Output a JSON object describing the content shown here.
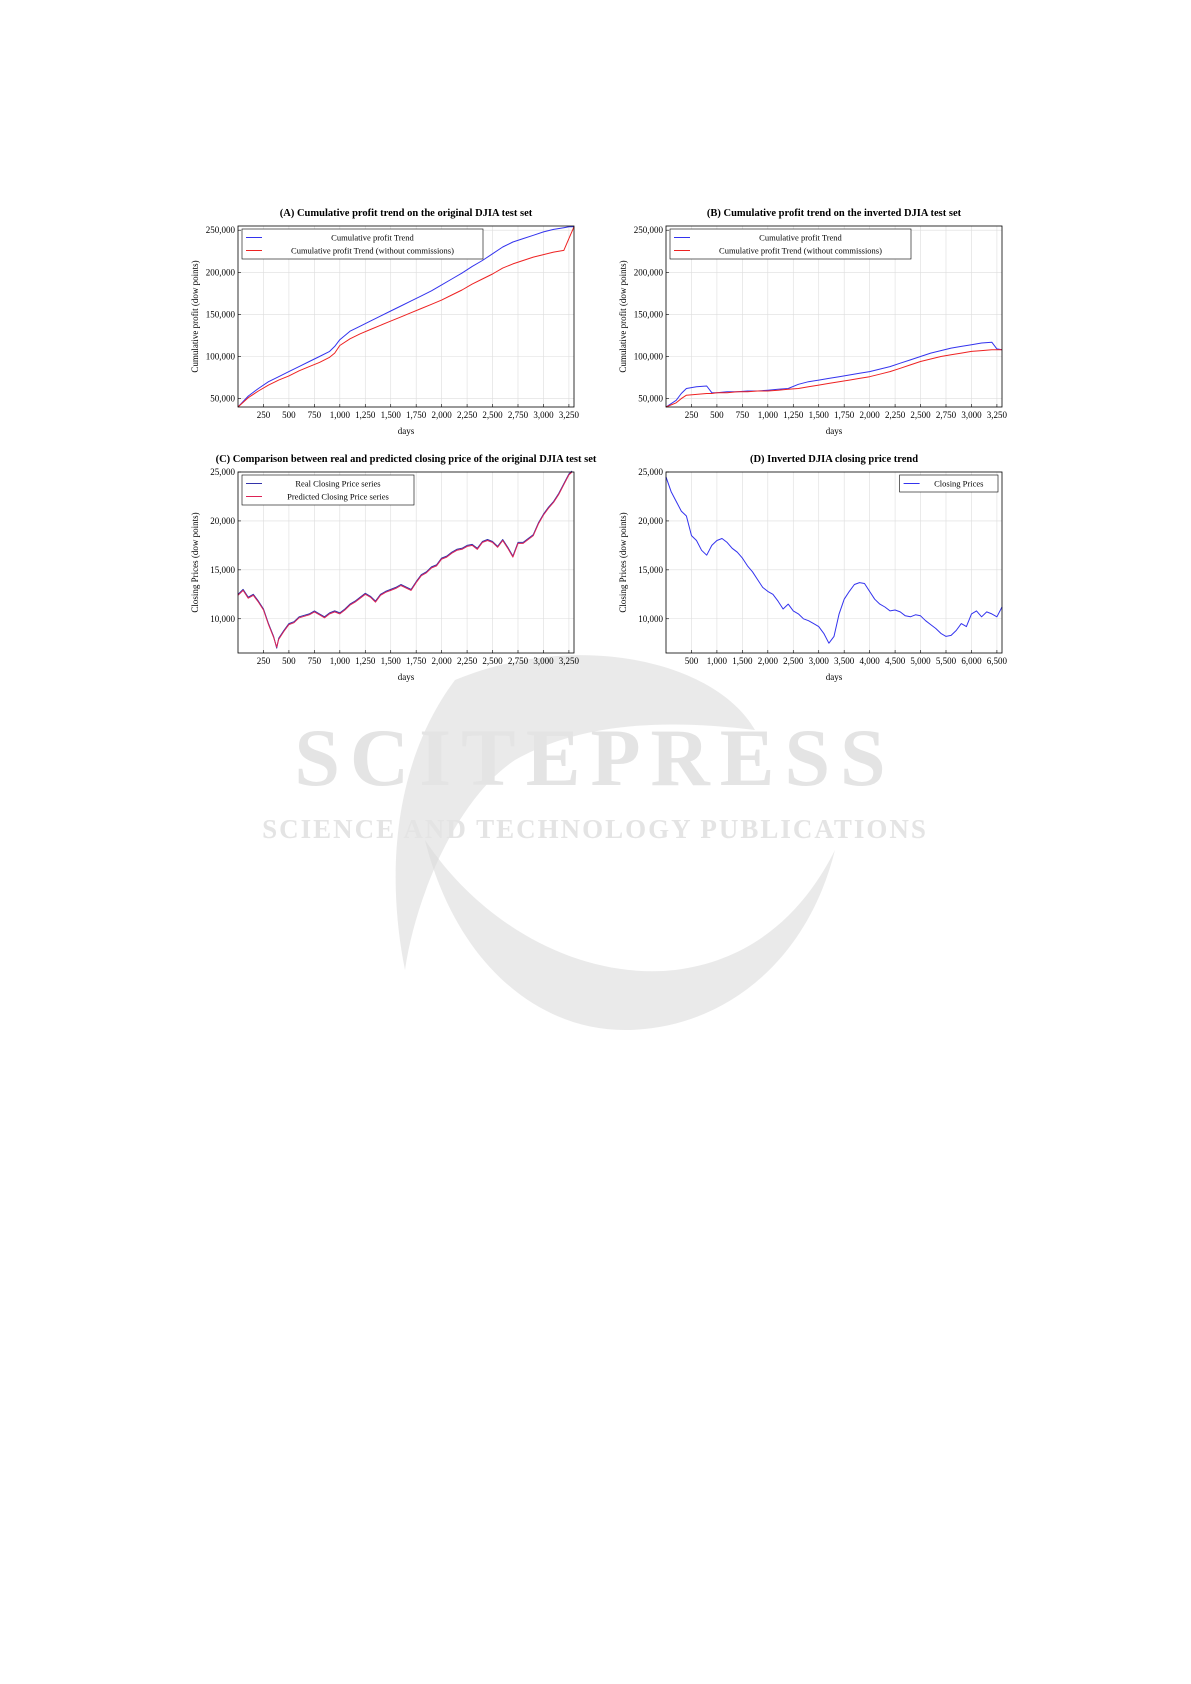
{
  "watermark": {
    "brand": "SCITEPRESS",
    "tagline": "SCIENCE AND TECHNOLOGY PUBLICATIONS"
  },
  "chart_data": [
    {
      "id": "A",
      "type": "line",
      "title": "(A) Cumulative profit trend on the original DJIA test set",
      "xlabel": "days",
      "ylabel": "Cumulative profit (dow points)",
      "xlim": [
        0,
        3300
      ],
      "ylim": [
        40000,
        255000
      ],
      "xticks": [
        250,
        500,
        750,
        1000,
        1250,
        1500,
        1750,
        2000,
        2250,
        2500,
        2750,
        3000,
        3250
      ],
      "xtick_labels": [
        "250",
        "500",
        "750",
        "1,000",
        "1,250",
        "1,500",
        "1,750",
        "2,000",
        "2,250",
        "2,500",
        "2,750",
        "3,000",
        "3,250"
      ],
      "yticks": [
        50000,
        100000,
        150000,
        200000,
        250000
      ],
      "ytick_labels": [
        "50,000",
        "100,000",
        "150,000",
        "200,000",
        "250,000"
      ],
      "legend_position": "top-left",
      "series": [
        {
          "name": "Cumulative profit Trend",
          "color": "#3333ee",
          "x": [
            0,
            100,
            200,
            300,
            400,
            500,
            600,
            700,
            800,
            900,
            950,
            1000,
            1100,
            1200,
            1300,
            1400,
            1500,
            1600,
            1700,
            1800,
            1900,
            2000,
            2100,
            2200,
            2300,
            2400,
            2500,
            2600,
            2700,
            2800,
            2900,
            3000,
            3100,
            3200,
            3250,
            3300
          ],
          "y": [
            40000,
            53000,
            62000,
            70000,
            76000,
            82000,
            88000,
            94000,
            100000,
            106000,
            112000,
            120000,
            130000,
            136000,
            142000,
            148000,
            154000,
            160000,
            166000,
            172000,
            178000,
            185000,
            192000,
            199000,
            207000,
            214000,
            222000,
            230000,
            236000,
            240000,
            244000,
            248000,
            251000,
            253000,
            254000,
            254000
          ]
        },
        {
          "name": "Cumulative profit Trend (without commissions)",
          "color": "#ee2222",
          "x": [
            0,
            100,
            200,
            300,
            400,
            500,
            600,
            700,
            800,
            900,
            950,
            1000,
            1100,
            1200,
            1300,
            1400,
            1500,
            1600,
            1700,
            1800,
            1900,
            2000,
            2100,
            2200,
            2300,
            2400,
            2500,
            2600,
            2700,
            2800,
            2900,
            3000,
            3100,
            3200,
            3250,
            3300
          ],
          "y": [
            40000,
            51000,
            59000,
            66000,
            72000,
            77000,
            83000,
            88000,
            93000,
            99000,
            104000,
            113000,
            121000,
            127000,
            132000,
            137000,
            142000,
            147000,
            152000,
            157000,
            162000,
            167000,
            173000,
            179000,
            186000,
            192000,
            198000,
            205000,
            210000,
            214000,
            218000,
            221000,
            224000,
            226000,
            240000,
            254000
          ]
        }
      ]
    },
    {
      "id": "B",
      "type": "line",
      "title": "(B) Cumulative profit trend on the inverted DJIA test set",
      "xlabel": "days",
      "ylabel": "Cumulative profit (dow points)",
      "xlim": [
        0,
        3300
      ],
      "ylim": [
        40000,
        255000
      ],
      "xticks": [
        250,
        500,
        750,
        1000,
        1250,
        1500,
        1750,
        2000,
        2250,
        2500,
        2750,
        3000,
        3250
      ],
      "xtick_labels": [
        "250",
        "500",
        "750",
        "1,000",
        "1,250",
        "1,500",
        "1,750",
        "2,000",
        "2,250",
        "2,500",
        "2,750",
        "3,000",
        "3,250"
      ],
      "yticks": [
        50000,
        100000,
        150000,
        200000,
        250000
      ],
      "ytick_labels": [
        "50,000",
        "100,000",
        "150,000",
        "200,000",
        "250,000"
      ],
      "legend_position": "top-left",
      "series": [
        {
          "name": "Cumulative profit Trend",
          "color": "#3333ee",
          "x": [
            0,
            100,
            150,
            200,
            300,
            400,
            450,
            500,
            600,
            700,
            800,
            900,
            1000,
            1100,
            1200,
            1300,
            1400,
            1500,
            1600,
            1700,
            1800,
            1900,
            2000,
            2100,
            2200,
            2300,
            2400,
            2500,
            2600,
            2700,
            2800,
            2900,
            3000,
            3100,
            3200,
            3250,
            3300
          ],
          "y": [
            40000,
            48000,
            56000,
            62000,
            64000,
            65000,
            57000,
            57000,
            58000,
            58000,
            59000,
            59000,
            60000,
            61000,
            62000,
            67000,
            70000,
            72000,
            74000,
            76000,
            78000,
            80000,
            82000,
            85000,
            88000,
            92000,
            96000,
            100000,
            104000,
            107000,
            110000,
            112000,
            114000,
            116000,
            117000,
            109000,
            108000
          ]
        },
        {
          "name": "Cumulative profit Trend (without commissions)",
          "color": "#ee2222",
          "x": [
            0,
            100,
            150,
            200,
            300,
            400,
            450,
            500,
            600,
            700,
            800,
            900,
            1000,
            1100,
            1200,
            1300,
            1400,
            1500,
            1600,
            1700,
            1800,
            1900,
            2000,
            2100,
            2200,
            2300,
            2400,
            2500,
            2600,
            2700,
            2800,
            2900,
            3000,
            3100,
            3200,
            3250,
            3300
          ],
          "y": [
            40000,
            45000,
            50000,
            54000,
            55000,
            56000,
            56000,
            57000,
            57000,
            58000,
            58000,
            59000,
            59000,
            60000,
            61000,
            62000,
            64000,
            66000,
            68000,
            70000,
            72000,
            74000,
            76000,
            79000,
            82000,
            86000,
            90000,
            94000,
            97000,
            100000,
            102000,
            104000,
            106000,
            107000,
            108000,
            108000,
            108000
          ]
        }
      ]
    },
    {
      "id": "C",
      "type": "line",
      "title": "(C) Comparison between real and predicted closing price of the original DJIA test set",
      "xlabel": "days",
      "ylabel": "Closing Prices (dow points)",
      "xlim": [
        0,
        3300
      ],
      "ylim": [
        6500,
        25000
      ],
      "xticks": [
        250,
        500,
        750,
        1000,
        1250,
        1500,
        1750,
        2000,
        2250,
        2500,
        2750,
        3000,
        3250
      ],
      "xtick_labels": [
        "250",
        "500",
        "750",
        "1,000",
        "1,250",
        "1,500",
        "1,750",
        "2,000",
        "2,250",
        "2,500",
        "2,750",
        "3,000",
        "3,250"
      ],
      "yticks": [
        10000,
        15000,
        20000,
        25000
      ],
      "ytick_labels": [
        "10,000",
        "15,000",
        "20,000",
        "25,000"
      ],
      "legend_position": "top-left",
      "series": [
        {
          "name": "Real Closing Price series",
          "color": "#3333aa",
          "x": [
            0,
            50,
            100,
            150,
            200,
            250,
            300,
            350,
            380,
            400,
            450,
            500,
            550,
            600,
            700,
            750,
            800,
            850,
            900,
            950,
            1000,
            1050,
            1100,
            1150,
            1200,
            1250,
            1300,
            1350,
            1400,
            1450,
            1500,
            1550,
            1600,
            1700,
            1750,
            1800,
            1850,
            1900,
            1950,
            2000,
            2050,
            2100,
            2150,
            2200,
            2250,
            2300,
            2350,
            2400,
            2450,
            2500,
            2550,
            2600,
            2650,
            2700,
            2750,
            2800,
            2850,
            2900,
            2950,
            3000,
            3050,
            3100,
            3150,
            3200,
            3250,
            3280
          ],
          "y": [
            12500,
            13000,
            12200,
            12500,
            11800,
            11000,
            9500,
            8200,
            7000,
            8000,
            8800,
            9500,
            9700,
            10200,
            10500,
            10800,
            10500,
            10200,
            10600,
            10800,
            10600,
            11000,
            11500,
            11800,
            12200,
            12600,
            12300,
            11800,
            12500,
            12800,
            13000,
            13200,
            13500,
            13000,
            13800,
            14500,
            14800,
            15300,
            15500,
            16200,
            16400,
            16800,
            17100,
            17200,
            17500,
            17600,
            17200,
            17900,
            18100,
            17900,
            17400,
            18100,
            17300,
            16400,
            17800,
            17800,
            18200,
            18600,
            19800,
            20700,
            21400,
            22000,
            22800,
            23800,
            24800,
            25100
          ]
        },
        {
          "name": "Predicted Closing Price series",
          "color": "#dd2255",
          "x": [
            0,
            50,
            100,
            150,
            200,
            250,
            300,
            350,
            380,
            400,
            450,
            500,
            550,
            600,
            700,
            750,
            800,
            850,
            900,
            950,
            1000,
            1050,
            1100,
            1150,
            1200,
            1250,
            1300,
            1350,
            1400,
            1450,
            1500,
            1550,
            1600,
            1700,
            1750,
            1800,
            1850,
            1900,
            1950,
            2000,
            2050,
            2100,
            2150,
            2200,
            2250,
            2300,
            2350,
            2400,
            2450,
            2500,
            2550,
            2600,
            2650,
            2700,
            2750,
            2800,
            2850,
            2900,
            2950,
            3000,
            3050,
            3100,
            3150,
            3200,
            3250,
            3280
          ],
          "y": [
            12400,
            12900,
            12100,
            12400,
            11700,
            10900,
            9400,
            8100,
            7100,
            7900,
            8700,
            9400,
            9600,
            10100,
            10400,
            10700,
            10400,
            10100,
            10500,
            10700,
            10500,
            10900,
            11400,
            11700,
            12100,
            12500,
            12200,
            11700,
            12400,
            12700,
            12900,
            13100,
            13400,
            12900,
            13700,
            14400,
            14700,
            15200,
            15400,
            16100,
            16300,
            16700,
            17000,
            17100,
            17400,
            17500,
            17100,
            17800,
            18000,
            17800,
            17300,
            18000,
            17200,
            16300,
            17700,
            17700,
            18100,
            18500,
            19700,
            20600,
            21300,
            21900,
            22700,
            23700,
            24700,
            25000
          ]
        }
      ]
    },
    {
      "id": "D",
      "type": "line",
      "title": "(D) Inverted DJIA closing price trend",
      "xlabel": "days",
      "ylabel": "Closing Prices (dow points)",
      "xlim": [
        0,
        6600
      ],
      "ylim": [
        6500,
        25000
      ],
      "xticks": [
        500,
        1000,
        1500,
        2000,
        2500,
        3000,
        3500,
        4000,
        4500,
        5000,
        5500,
        6000,
        6500
      ],
      "xtick_labels": [
        "500",
        "1,000",
        "1,500",
        "2,000",
        "2,500",
        "3,000",
        "3,500",
        "4,000",
        "4,500",
        "5,000",
        "5,500",
        "6,000",
        "6,500"
      ],
      "yticks": [
        10000,
        15000,
        20000,
        25000
      ],
      "ytick_labels": [
        "10,000",
        "15,000",
        "20,000",
        "25,000"
      ],
      "legend_position": "top-right",
      "series": [
        {
          "name": "Closing Prices",
          "color": "#3333ee",
          "x": [
            0,
            100,
            200,
            300,
            400,
            500,
            600,
            700,
            800,
            900,
            1000,
            1100,
            1200,
            1300,
            1400,
            1500,
            1600,
            1700,
            1800,
            1900,
            2000,
            2100,
            2200,
            2300,
            2400,
            2500,
            2600,
            2700,
            2800,
            2900,
            3000,
            3100,
            3200,
            3300,
            3400,
            3500,
            3600,
            3700,
            3800,
            3900,
            4000,
            4100,
            4200,
            4300,
            4400,
            4500,
            4600,
            4700,
            4800,
            4900,
            5000,
            5100,
            5200,
            5300,
            5400,
            5500,
            5600,
            5700,
            5800,
            5900,
            6000,
            6100,
            6200,
            6300,
            6400,
            6500,
            6600
          ],
          "y": [
            24500,
            23000,
            22000,
            21000,
            20500,
            18500,
            18000,
            17000,
            16500,
            17500,
            18000,
            18200,
            17800,
            17200,
            16800,
            16200,
            15400,
            14800,
            14000,
            13200,
            12800,
            12500,
            11800,
            11000,
            11500,
            10800,
            10500,
            10000,
            9800,
            9500,
            9200,
            8500,
            7500,
            8200,
            10500,
            12000,
            12800,
            13500,
            13700,
            13600,
            12800,
            12000,
            11500,
            11200,
            10800,
            10900,
            10700,
            10300,
            10200,
            10400,
            10300,
            9800,
            9400,
            9000,
            8500,
            8200,
            8300,
            8800,
            9500,
            9200,
            10500,
            10800,
            10200,
            10700,
            10500,
            10200,
            11200
          ]
        }
      ]
    }
  ]
}
